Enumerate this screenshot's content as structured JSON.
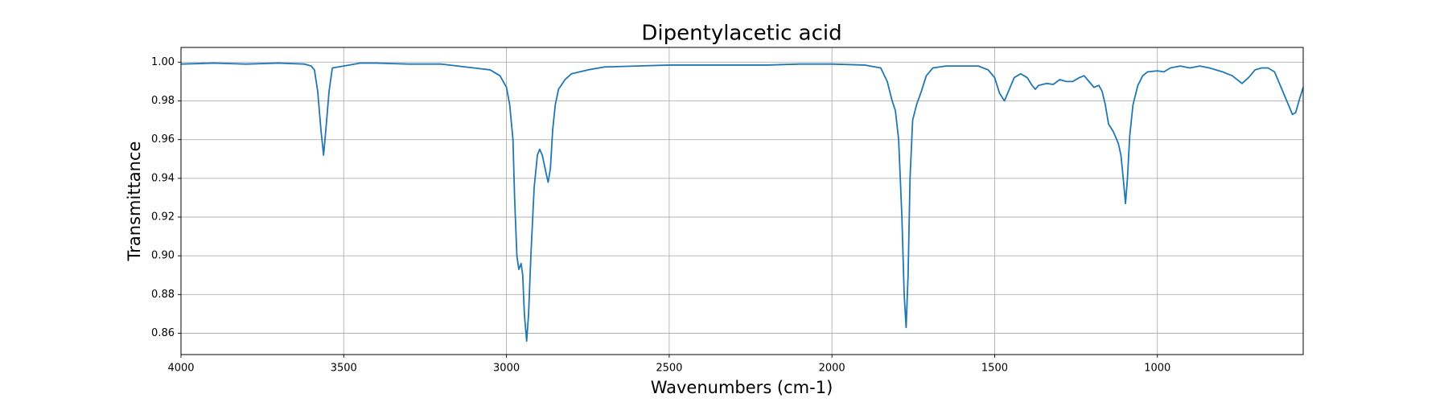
{
  "chart_data": {
    "type": "line",
    "title": "Dipentylacetic acid",
    "x_label": "Wavenumbers (cm-1)",
    "y_label": "Transmittance",
    "color": "#1f77b4",
    "grid": true,
    "xlim": [
      4000,
      552
    ],
    "ylim": [
      0.849,
      1.0076
    ],
    "xticks": [
      4000,
      3500,
      3000,
      2500,
      2000,
      1500,
      1000
    ],
    "yticks": [
      0.86,
      0.88,
      {
        "value": 0.9,
        "label": "0.90"
      },
      0.92,
      0.94,
      0.96,
      0.98,
      {
        "value": 1,
        "label": "1.00"
      }
    ],
    "x": [
      4000,
      3900,
      3800,
      3700,
      3620,
      3600,
      3590,
      3580,
      3570,
      3562,
      3555,
      3545,
      3535,
      3500,
      3450,
      3400,
      3300,
      3200,
      3100,
      3050,
      3020,
      3000,
      2990,
      2980,
      2975,
      2968,
      2962,
      2955,
      2950,
      2945,
      2938,
      2932,
      2925,
      2915,
      2905,
      2898,
      2890,
      2880,
      2872,
      2865,
      2858,
      2850,
      2840,
      2820,
      2800,
      2750,
      2700,
      2600,
      2500,
      2400,
      2300,
      2200,
      2100,
      2000,
      1900,
      1850,
      1830,
      1815,
      1805,
      1795,
      1785,
      1778,
      1772,
      1766,
      1760,
      1752,
      1740,
      1725,
      1710,
      1690,
      1650,
      1600,
      1550,
      1520,
      1500,
      1485,
      1470,
      1460,
      1440,
      1420,
      1400,
      1385,
      1375,
      1365,
      1340,
      1320,
      1300,
      1280,
      1260,
      1240,
      1225,
      1210,
      1195,
      1180,
      1170,
      1160,
      1150,
      1135,
      1120,
      1112,
      1105,
      1098,
      1092,
      1085,
      1075,
      1060,
      1045,
      1030,
      1000,
      980,
      960,
      930,
      900,
      870,
      840,
      800,
      770,
      740,
      720,
      700,
      680,
      660,
      640,
      620,
      600,
      585,
      575,
      565,
      552
    ],
    "values": [
      0.999,
      0.9995,
      0.999,
      0.9995,
      0.999,
      0.998,
      0.996,
      0.985,
      0.965,
      0.952,
      0.965,
      0.985,
      0.997,
      0.998,
      0.9995,
      0.9995,
      0.999,
      0.999,
      0.997,
      0.996,
      0.993,
      0.987,
      0.978,
      0.96,
      0.93,
      0.9,
      0.893,
      0.896,
      0.89,
      0.87,
      0.856,
      0.87,
      0.9,
      0.935,
      0.952,
      0.955,
      0.952,
      0.944,
      0.938,
      0.945,
      0.965,
      0.978,
      0.986,
      0.991,
      0.994,
      0.996,
      0.9975,
      0.998,
      0.9985,
      0.9985,
      0.9985,
      0.9985,
      0.999,
      0.999,
      0.9985,
      0.997,
      0.99,
      0.98,
      0.975,
      0.96,
      0.92,
      0.88,
      0.863,
      0.89,
      0.94,
      0.97,
      0.978,
      0.985,
      0.993,
      0.997,
      0.998,
      0.998,
      0.998,
      0.996,
      0.992,
      0.984,
      0.98,
      0.984,
      0.992,
      0.994,
      0.992,
      0.988,
      0.986,
      0.988,
      0.989,
      0.9885,
      0.991,
      0.99,
      0.99,
      0.992,
      0.993,
      0.99,
      0.987,
      0.988,
      0.985,
      0.978,
      0.968,
      0.964,
      0.958,
      0.952,
      0.94,
      0.927,
      0.94,
      0.962,
      0.978,
      0.988,
      0.993,
      0.995,
      0.9955,
      0.995,
      0.997,
      0.998,
      0.997,
      0.998,
      0.997,
      0.995,
      0.993,
      0.989,
      0.992,
      0.996,
      0.997,
      0.997,
      0.995,
      0.987,
      0.979,
      0.973,
      0.974,
      0.98,
      0.987
    ]
  }
}
